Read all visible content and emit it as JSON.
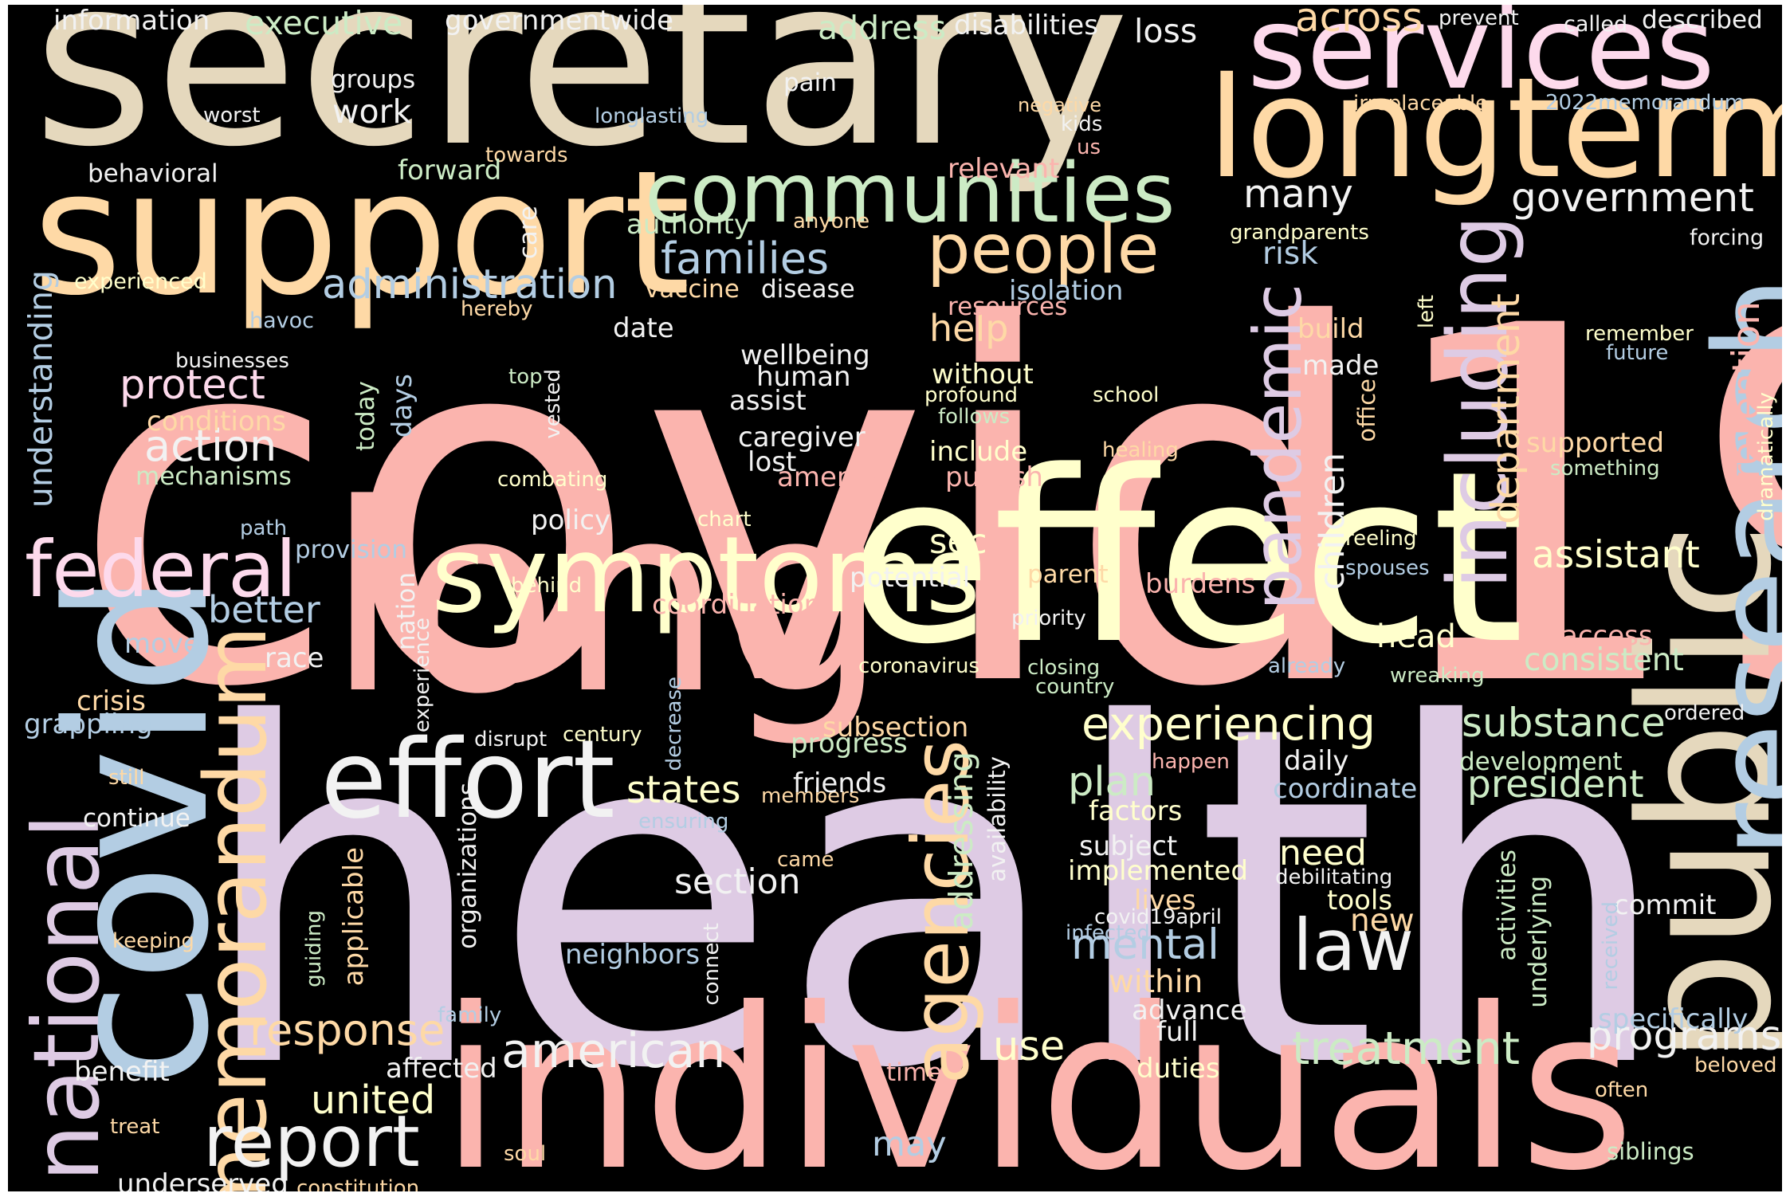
{
  "palette": [
    "#fbb4ae",
    "#b3cde3",
    "#ccebc5",
    "#decbe4",
    "#fed9a6",
    "#ffffcc",
    "#e5d8bd",
    "#fddaec",
    "#f2f2f2"
  ],
  "background": "#000000",
  "words": [
    {
      "text": "covid19",
      "color": "#fbb4ae"
    },
    {
      "text": "health",
      "color": "#decbe4"
    },
    {
      "text": "secretary",
      "color": "#e5d8bd"
    },
    {
      "text": "effect",
      "color": "#ffffcc"
    },
    {
      "text": "long",
      "color": "#fbb4ae"
    },
    {
      "text": "individuals",
      "color": "#fbb4ae"
    },
    {
      "text": "covid",
      "color": "#b3cde3"
    },
    {
      "text": "support",
      "color": "#fed9a6"
    },
    {
      "text": "longterm",
      "color": "#fed9a6"
    },
    {
      "text": "services",
      "color": "#fddaec"
    },
    {
      "text": "public",
      "color": "#e5d8bd"
    },
    {
      "text": "research",
      "color": "#b3cde3"
    },
    {
      "text": "symptoms",
      "color": "#ffffcc"
    },
    {
      "text": "effort",
      "color": "#f2f2f2"
    },
    {
      "text": "memorandum",
      "color": "#fed9a6"
    },
    {
      "text": "communities",
      "color": "#ccebc5"
    },
    {
      "text": "federal",
      "color": "#fddaec"
    },
    {
      "text": "national",
      "color": "#decbe4"
    },
    {
      "text": "agencies",
      "color": "#fed9a6"
    },
    {
      "text": "including",
      "color": "#decbe4"
    },
    {
      "text": "people",
      "color": "#fed9a6"
    },
    {
      "text": "report",
      "color": "#f2f2f2"
    },
    {
      "text": "law",
      "color": "#f2f2f2"
    },
    {
      "text": "pandemic",
      "color": "#decbe4"
    },
    {
      "text": "american",
      "color": "#f2f2f2"
    },
    {
      "text": "experiencing",
      "color": "#ffffcc"
    },
    {
      "text": "administration",
      "color": "#b3cde3"
    },
    {
      "text": "families",
      "color": "#b3cde3"
    },
    {
      "text": "action",
      "color": "#f2f2f2"
    },
    {
      "text": "protect",
      "color": "#fddaec"
    },
    {
      "text": "treatment",
      "color": "#ccebc5"
    },
    {
      "text": "response",
      "color": "#fed9a6"
    },
    {
      "text": "substance",
      "color": "#ccebc5"
    },
    {
      "text": "government",
      "color": "#f2f2f2"
    },
    {
      "text": "department",
      "color": "#fed9a6"
    },
    {
      "text": "many",
      "color": "#f2f2f2"
    },
    {
      "text": "mental",
      "color": "#b3cde3"
    },
    {
      "text": "programs",
      "color": "#f2f2f2"
    },
    {
      "text": "prevention",
      "color": "#fbb4ae"
    },
    {
      "text": "assistant",
      "color": "#ffffcc"
    },
    {
      "text": "states",
      "color": "#ffffcc"
    },
    {
      "text": "president",
      "color": "#ccebc5"
    },
    {
      "text": "across",
      "color": "#fed9a6"
    },
    {
      "text": "united",
      "color": "#ffffcc"
    },
    {
      "text": "plan",
      "color": "#ccebc5"
    },
    {
      "text": "use",
      "color": "#ffffcc"
    },
    {
      "text": "section",
      "color": "#f2f2f2"
    },
    {
      "text": "help",
      "color": "#fed9a6"
    },
    {
      "text": "understanding",
      "color": "#b3cde3"
    },
    {
      "text": "children",
      "color": "#f2f2f2"
    },
    {
      "text": "addressing",
      "color": "#ccebc5"
    },
    {
      "text": "better",
      "color": "#b3cde3"
    },
    {
      "text": "need",
      "color": "#ffffcc"
    },
    {
      "text": "may",
      "color": "#b3cde3"
    },
    {
      "text": "sec",
      "color": "#ffffcc"
    },
    {
      "text": "consistent",
      "color": "#ccebc5"
    },
    {
      "text": "head",
      "color": "#ffffcc"
    },
    {
      "text": "risk",
      "color": "#b3cde3"
    },
    {
      "text": "new",
      "color": "#fed9a6"
    },
    {
      "text": "within",
      "color": "#fed9a6"
    },
    {
      "text": "work",
      "color": "#f2f2f2"
    },
    {
      "text": "address",
      "color": "#ccebc5"
    },
    {
      "text": "executive",
      "color": "#ccebc5"
    },
    {
      "text": "information",
      "color": "#f2f2f2"
    },
    {
      "text": "governmentwide",
      "color": "#f2f2f2"
    },
    {
      "text": "disabilities",
      "color": "#f2f2f2"
    },
    {
      "text": "loss",
      "color": "#f2f2f2"
    },
    {
      "text": "prevent",
      "color": "#f2f2f2"
    },
    {
      "text": "called",
      "color": "#f2f2f2"
    },
    {
      "text": "described",
      "color": "#f2f2f2"
    },
    {
      "text": "groups",
      "color": "#f2f2f2"
    },
    {
      "text": "pain",
      "color": "#f2f2f2"
    },
    {
      "text": "negative",
      "color": "#fed9a6"
    },
    {
      "text": "irreplaceable",
      "color": "#fed9a6"
    },
    {
      "text": "2022memorandum",
      "color": "#b3cde3"
    },
    {
      "text": "worst",
      "color": "#f2f2f2"
    },
    {
      "text": "longlasting",
      "color": "#b3cde3"
    },
    {
      "text": "kids",
      "color": "#f2f2f2"
    },
    {
      "text": "us",
      "color": "#fbb4ae"
    },
    {
      "text": "towards",
      "color": "#fed9a6"
    },
    {
      "text": "relevant",
      "color": "#fbb4ae"
    },
    {
      "text": "behavioral",
      "color": "#f2f2f2"
    },
    {
      "text": "forward",
      "color": "#ccebc5"
    },
    {
      "text": "authority",
      "color": "#ccebc5"
    },
    {
      "text": "anyone",
      "color": "#fed9a6"
    },
    {
      "text": "care",
      "color": "#f2f2f2"
    },
    {
      "text": "grandparents",
      "color": "#ffffcc"
    },
    {
      "text": "forcing",
      "color": "#f2f2f2"
    },
    {
      "text": "experienced",
      "color": "#ffffcc"
    },
    {
      "text": "vaccine",
      "color": "#fed9a6"
    },
    {
      "text": "disease",
      "color": "#f2f2f2"
    },
    {
      "text": "isolation",
      "color": "#b3cde3"
    },
    {
      "text": "resources",
      "color": "#fbb4ae"
    },
    {
      "text": "hereby",
      "color": "#fed9a6"
    },
    {
      "text": "left",
      "color": "#ffffcc"
    },
    {
      "text": "havoc",
      "color": "#b3cde3"
    },
    {
      "text": "date",
      "color": "#f2f2f2"
    },
    {
      "text": "build",
      "color": "#fed9a6"
    },
    {
      "text": "remember",
      "color": "#ffffcc"
    },
    {
      "text": "future",
      "color": "#b3cde3"
    },
    {
      "text": "businesses",
      "color": "#f2f2f2"
    },
    {
      "text": "wellbeing",
      "color": "#f2f2f2"
    },
    {
      "text": "made",
      "color": "#f2f2f2"
    },
    {
      "text": "top",
      "color": "#ccebc5"
    },
    {
      "text": "human",
      "color": "#f2f2f2"
    },
    {
      "text": "without",
      "color": "#ffffcc"
    },
    {
      "text": "profound",
      "color": "#ffffcc"
    },
    {
      "text": "school",
      "color": "#ffffcc"
    },
    {
      "text": "office",
      "color": "#fed9a6"
    },
    {
      "text": "dramatically",
      "color": "#ffffcc"
    },
    {
      "text": "days",
      "color": "#b3cde3"
    },
    {
      "text": "vested",
      "color": "#f2f2f2"
    },
    {
      "text": "assist",
      "color": "#f2f2f2"
    },
    {
      "text": "follows",
      "color": "#ccebc5"
    },
    {
      "text": "conditions",
      "color": "#fed9a6"
    },
    {
      "text": "today",
      "color": "#ccebc5"
    },
    {
      "text": "caregiver",
      "color": "#f2f2f2"
    },
    {
      "text": "include",
      "color": "#ffffcc"
    },
    {
      "text": "healing",
      "color": "#fed9a6"
    },
    {
      "text": "supported",
      "color": "#fed9a6"
    },
    {
      "text": "mechanisms",
      "color": "#ccebc5"
    },
    {
      "text": "lost",
      "color": "#f2f2f2"
    },
    {
      "text": "america",
      "color": "#fbb4ae"
    },
    {
      "text": "publish",
      "color": "#fbb4ae"
    },
    {
      "text": "something",
      "color": "#ccebc5"
    },
    {
      "text": "combating",
      "color": "#ffffcc"
    },
    {
      "text": "policy",
      "color": "#f2f2f2"
    },
    {
      "text": "path",
      "color": "#b3cde3"
    },
    {
      "text": "chart",
      "color": "#ffffcc"
    },
    {
      "text": "reeling",
      "color": "#ffffcc"
    },
    {
      "text": "provision",
      "color": "#b3cde3"
    },
    {
      "text": "potential",
      "color": "#f2f2f2"
    },
    {
      "text": "parent",
      "color": "#fed9a6"
    },
    {
      "text": "burdens",
      "color": "#fbb4ae"
    },
    {
      "text": "spouses",
      "color": "#b3cde3"
    },
    {
      "text": "behind",
      "color": "#ffffcc"
    },
    {
      "text": "coordination",
      "color": "#fbb4ae"
    },
    {
      "text": "priority",
      "color": "#f2f2f2"
    },
    {
      "text": "move",
      "color": "#b3cde3"
    },
    {
      "text": "race",
      "color": "#f2f2f2"
    },
    {
      "text": "nation",
      "color": "#f2f2f2"
    },
    {
      "text": "experience",
      "color": "#f2f2f2"
    },
    {
      "text": "coronavirus",
      "color": "#ffffcc"
    },
    {
      "text": "closing",
      "color": "#ccebc5"
    },
    {
      "text": "country",
      "color": "#ccebc5"
    },
    {
      "text": "access",
      "color": "#fbb4ae"
    },
    {
      "text": "already",
      "color": "#b3cde3"
    },
    {
      "text": "wreaking",
      "color": "#ccebc5"
    },
    {
      "text": "crisis",
      "color": "#fed9a6"
    },
    {
      "text": "grappling",
      "color": "#b3cde3"
    },
    {
      "text": "decrease",
      "color": "#b3cde3"
    },
    {
      "text": "disrupt",
      "color": "#f2f2f2"
    },
    {
      "text": "century",
      "color": "#ffffcc"
    },
    {
      "text": "subsection",
      "color": "#fed9a6"
    },
    {
      "text": "progress",
      "color": "#ccebc5"
    },
    {
      "text": "ordered",
      "color": "#f2f2f2"
    },
    {
      "text": "happen",
      "color": "#fbb4ae"
    },
    {
      "text": "daily",
      "color": "#f2f2f2"
    },
    {
      "text": "development",
      "color": "#ccebc5"
    },
    {
      "text": "still",
      "color": "#fed9a6"
    },
    {
      "text": "members",
      "color": "#fed9a6"
    },
    {
      "text": "friends",
      "color": "#f2f2f2"
    },
    {
      "text": "coordinate",
      "color": "#b3cde3"
    },
    {
      "text": "continue",
      "color": "#f2f2f2"
    },
    {
      "text": "ensuring",
      "color": "#b3cde3"
    },
    {
      "text": "organizations",
      "color": "#f2f2f2"
    },
    {
      "text": "factors",
      "color": "#ffffcc"
    },
    {
      "text": "availability",
      "color": "#f2f2f2"
    },
    {
      "text": "subject",
      "color": "#f2f2f2"
    },
    {
      "text": "implemented",
      "color": "#ffffcc"
    },
    {
      "text": "applicable",
      "color": "#fed9a6"
    },
    {
      "text": "activities",
      "color": "#ccebc5"
    },
    {
      "text": "came",
      "color": "#fed9a6"
    },
    {
      "text": "debilitating",
      "color": "#f2f2f2"
    },
    {
      "text": "underlying",
      "color": "#ccebc5"
    },
    {
      "text": "lives",
      "color": "#fed9a6"
    },
    {
      "text": "tools",
      "color": "#ffffcc"
    },
    {
      "text": "commit",
      "color": "#f2f2f2"
    },
    {
      "text": "covid19april",
      "color": "#f2f2f2"
    },
    {
      "text": "keeping",
      "color": "#fed9a6"
    },
    {
      "text": "guiding",
      "color": "#ccebc5"
    },
    {
      "text": "infected",
      "color": "#b3cde3"
    },
    {
      "text": "received",
      "color": "#b3cde3"
    },
    {
      "text": "neighbors",
      "color": "#b3cde3"
    },
    {
      "text": "connect",
      "color": "#f2f2f2"
    },
    {
      "text": "family",
      "color": "#b3cde3"
    },
    {
      "text": "advance",
      "color": "#f2f2f2"
    },
    {
      "text": "specifically",
      "color": "#b3cde3"
    },
    {
      "text": "full",
      "color": "#f2f2f2"
    },
    {
      "text": "benefit",
      "color": "#f2f2f2"
    },
    {
      "text": "affected",
      "color": "#f2f2f2"
    },
    {
      "text": "time",
      "color": "#fbb4ae"
    },
    {
      "text": "duties",
      "color": "#ffffcc"
    },
    {
      "text": "beloved",
      "color": "#fed9a6"
    },
    {
      "text": "often",
      "color": "#fed9a6"
    },
    {
      "text": "treat",
      "color": "#fed9a6"
    },
    {
      "text": "soul",
      "color": "#fed9a6"
    },
    {
      "text": "siblings",
      "color": "#ccebc5"
    },
    {
      "text": "underserved",
      "color": "#f2f2f2"
    },
    {
      "text": "constitution",
      "color": "#fed9a6"
    }
  ]
}
